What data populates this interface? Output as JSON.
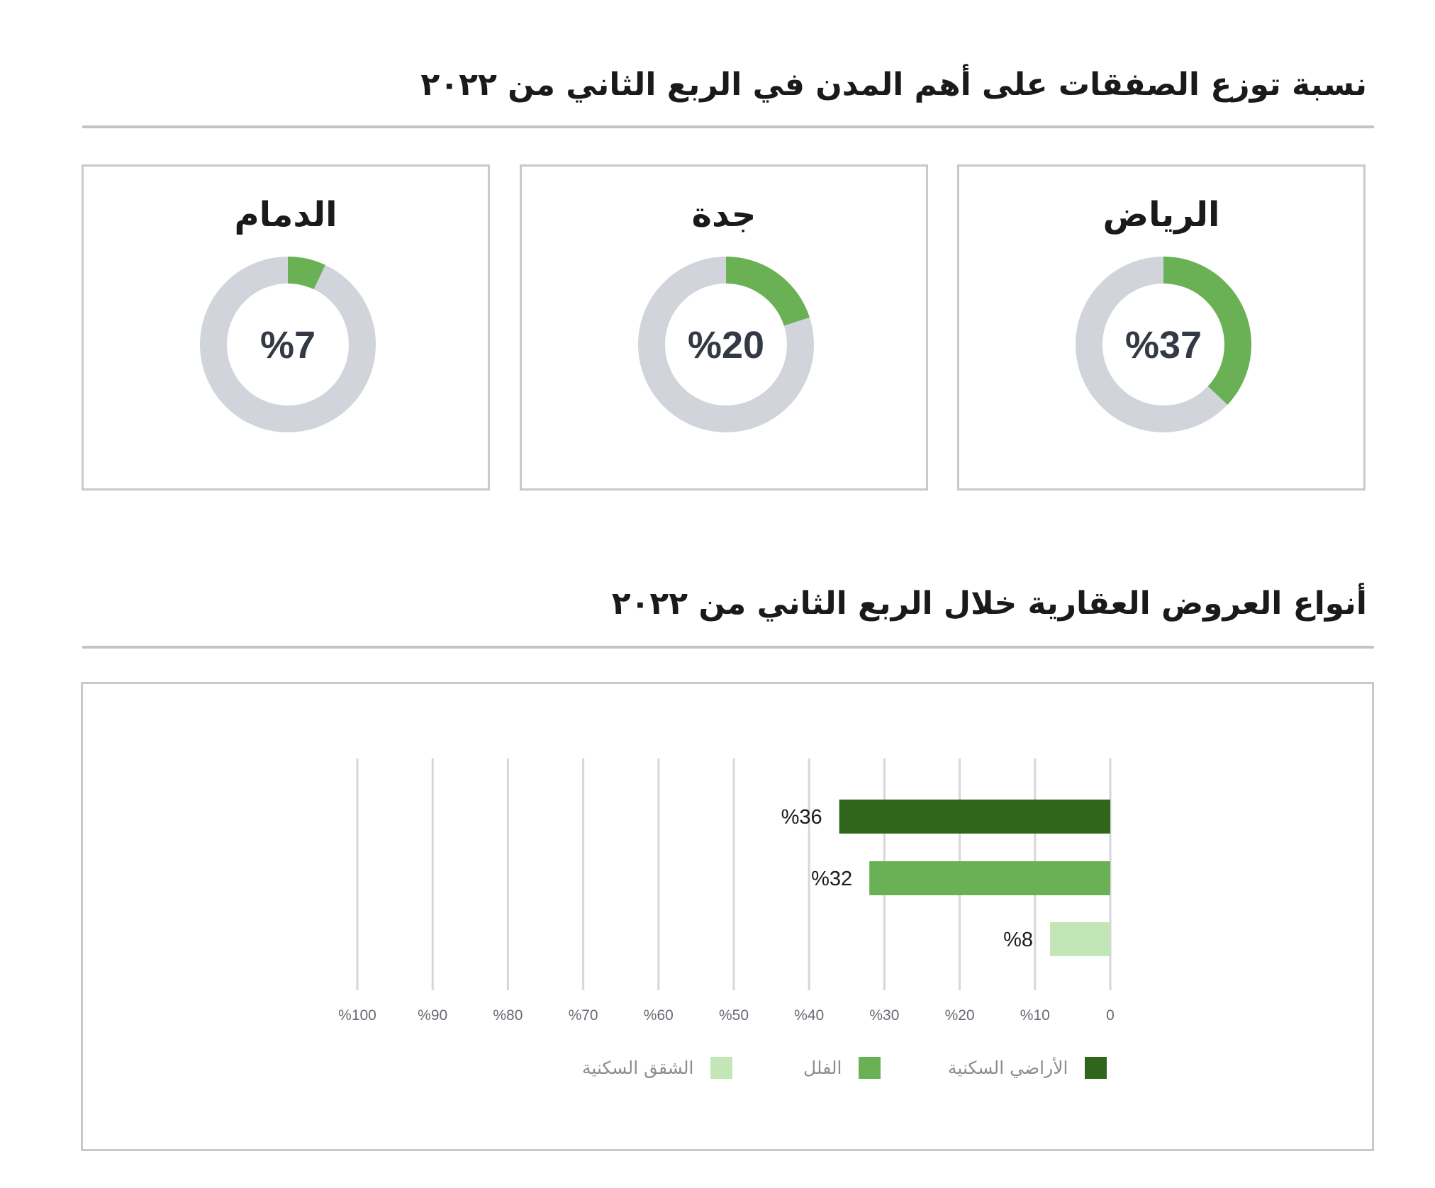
{
  "top_section": {
    "title": "نسبة توزع الصفقات على أهم المدن في الربع الثاني من ٢٠٢٢"
  },
  "cities": [
    {
      "name": "الرياض",
      "value": 37,
      "label": "%37"
    },
    {
      "name": "جدة",
      "value": 20,
      "label": "%20"
    },
    {
      "name": "الدمام",
      "value": 7,
      "label": "%7"
    }
  ],
  "bottom_section": {
    "title": "أنواع العروض العقارية خلال الربع الثاني من ٢٠٢٢"
  },
  "colors": {
    "donut_fill": "#6ab155",
    "donut_track": "#d1d5db",
    "dark_green": "#2f661c",
    "mid_green": "#6ab155",
    "light_green": "#c3e6b6"
  },
  "chart_data": [
    {
      "type": "pie",
      "subtype": "donut",
      "categories": [
        "الرياض",
        "جدة",
        "الدمام"
      ],
      "values": [
        37,
        20,
        7
      ],
      "unit": "%"
    },
    {
      "type": "bar",
      "orientation": "horizontal",
      "direction": "right-to-left",
      "series": [
        {
          "name": "الأراضي السكنية",
          "value": 36,
          "label": "%36",
          "color": "#2f661c"
        },
        {
          "name": "الفلل",
          "value": 32,
          "label": "%32",
          "color": "#6ab155"
        },
        {
          "name": "الشقق السكنية",
          "value": 8,
          "label": "%8",
          "color": "#c3e6b6"
        }
      ],
      "xlim": [
        0,
        100
      ],
      "ticks": [
        0,
        10,
        20,
        30,
        40,
        50,
        60,
        70,
        80,
        90,
        100
      ],
      "tick_labels": [
        "0",
        "%10",
        "%20",
        "%30",
        "%40",
        "%50",
        "%60",
        "%70",
        "%80",
        "%90",
        "%100"
      ],
      "grid": true,
      "legend": "bottom"
    }
  ]
}
